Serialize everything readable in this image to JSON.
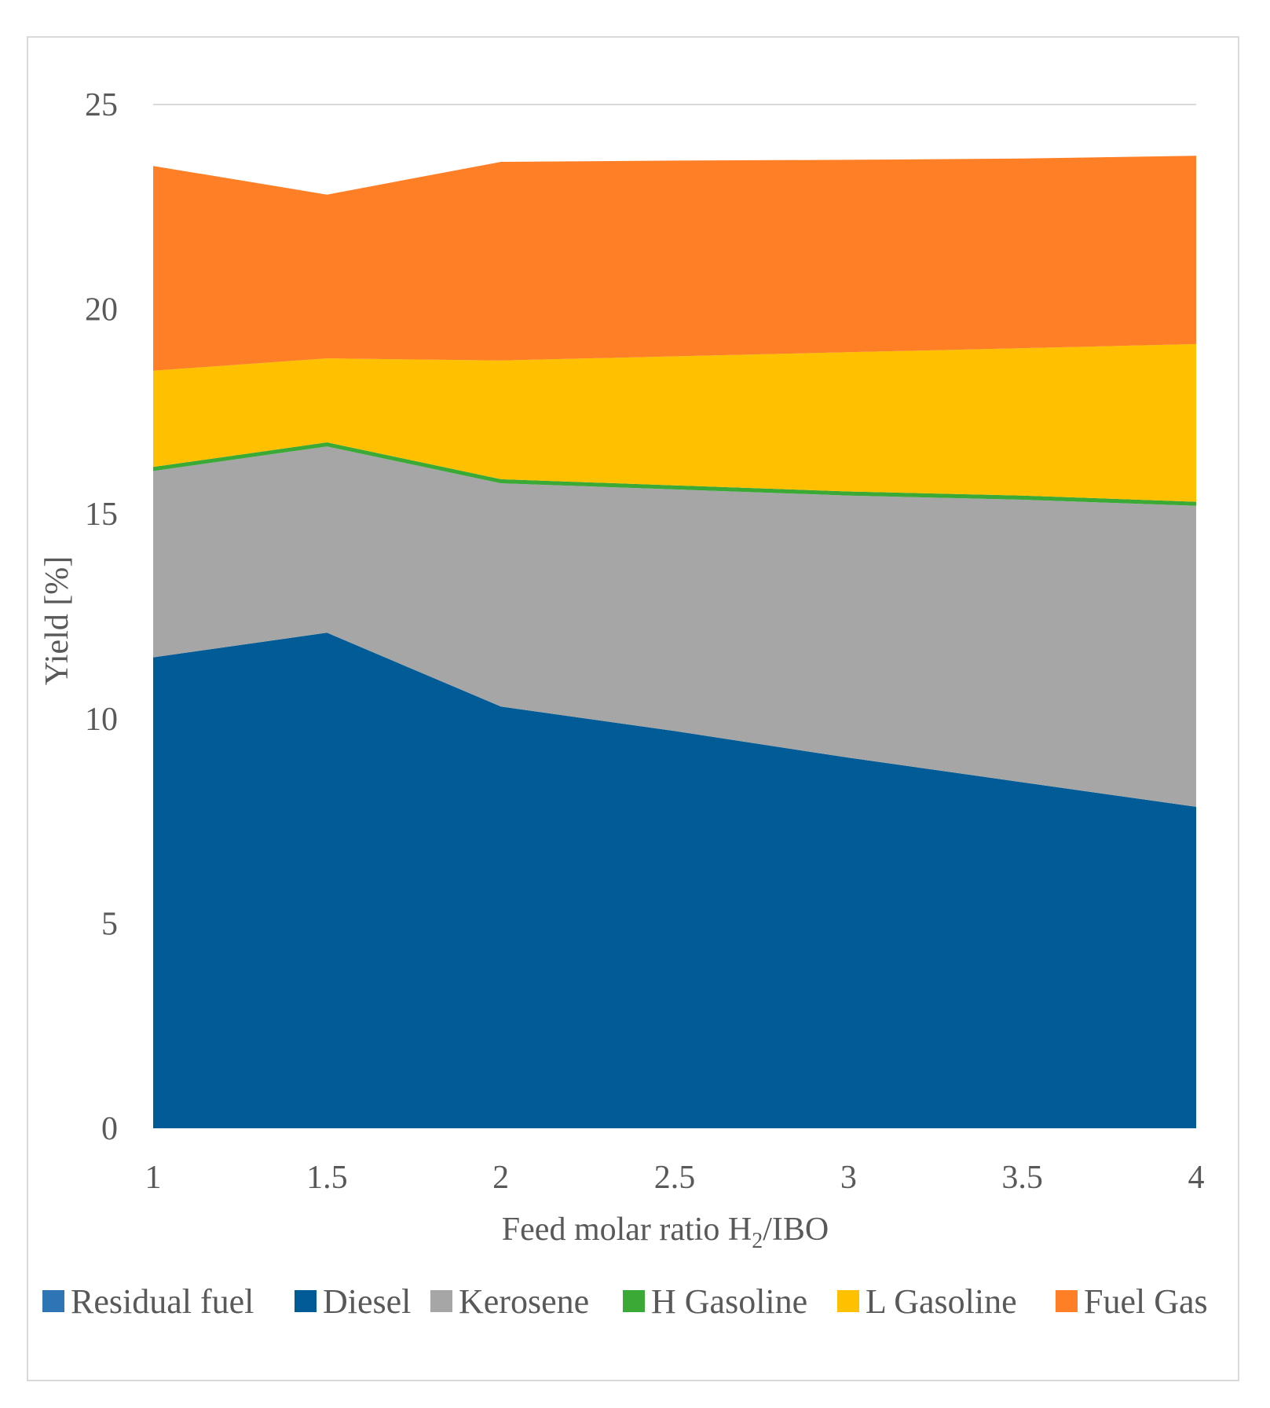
{
  "chart_data": {
    "type": "area",
    "stacked": true,
    "title": "",
    "xlabel_main": "Feed molar ratio H",
    "xlabel_sub": "2",
    "xlabel_tail": "/IBO",
    "ylabel": "Yield [%]",
    "x": [
      1,
      1.5,
      2,
      2.5,
      3,
      3.5,
      4
    ],
    "xlim": [
      1,
      4
    ],
    "ylim": [
      0,
      25
    ],
    "xticks": [
      "1",
      "1.5",
      "2",
      "2.5",
      "3",
      "3.5",
      "4"
    ],
    "yticks": [
      "0",
      "5",
      "10",
      "15",
      "20",
      "25"
    ],
    "grid": "horizontal-at-max",
    "legend_position": "bottom",
    "series": [
      {
        "name": "Residual fuel",
        "color": "#2e75b6",
        "values": [
          0,
          0,
          0,
          0,
          0,
          0,
          0
        ]
      },
      {
        "name": "Diesel",
        "color": "#005b96",
        "values": [
          11.5,
          12.1,
          10.3,
          9.7,
          9.05,
          8.45,
          7.85
        ]
      },
      {
        "name": "Kerosene",
        "color": "#a6a6a6",
        "values": [
          4.55,
          4.55,
          5.45,
          5.9,
          6.4,
          6.9,
          7.35
        ]
      },
      {
        "name": "H Gasoline",
        "color": "#3aa935",
        "values": [
          0.1,
          0.1,
          0.1,
          0.1,
          0.1,
          0.1,
          0.1
        ]
      },
      {
        "name": "L Gasoline",
        "color": "#ffc000",
        "values": [
          2.35,
          2.05,
          2.9,
          3.15,
          3.4,
          3.6,
          3.85
        ]
      },
      {
        "name": "Fuel Gas",
        "color": "#ff7f27",
        "values": [
          5.0,
          4.0,
          4.85,
          4.78,
          4.7,
          4.63,
          4.6
        ]
      }
    ]
  }
}
